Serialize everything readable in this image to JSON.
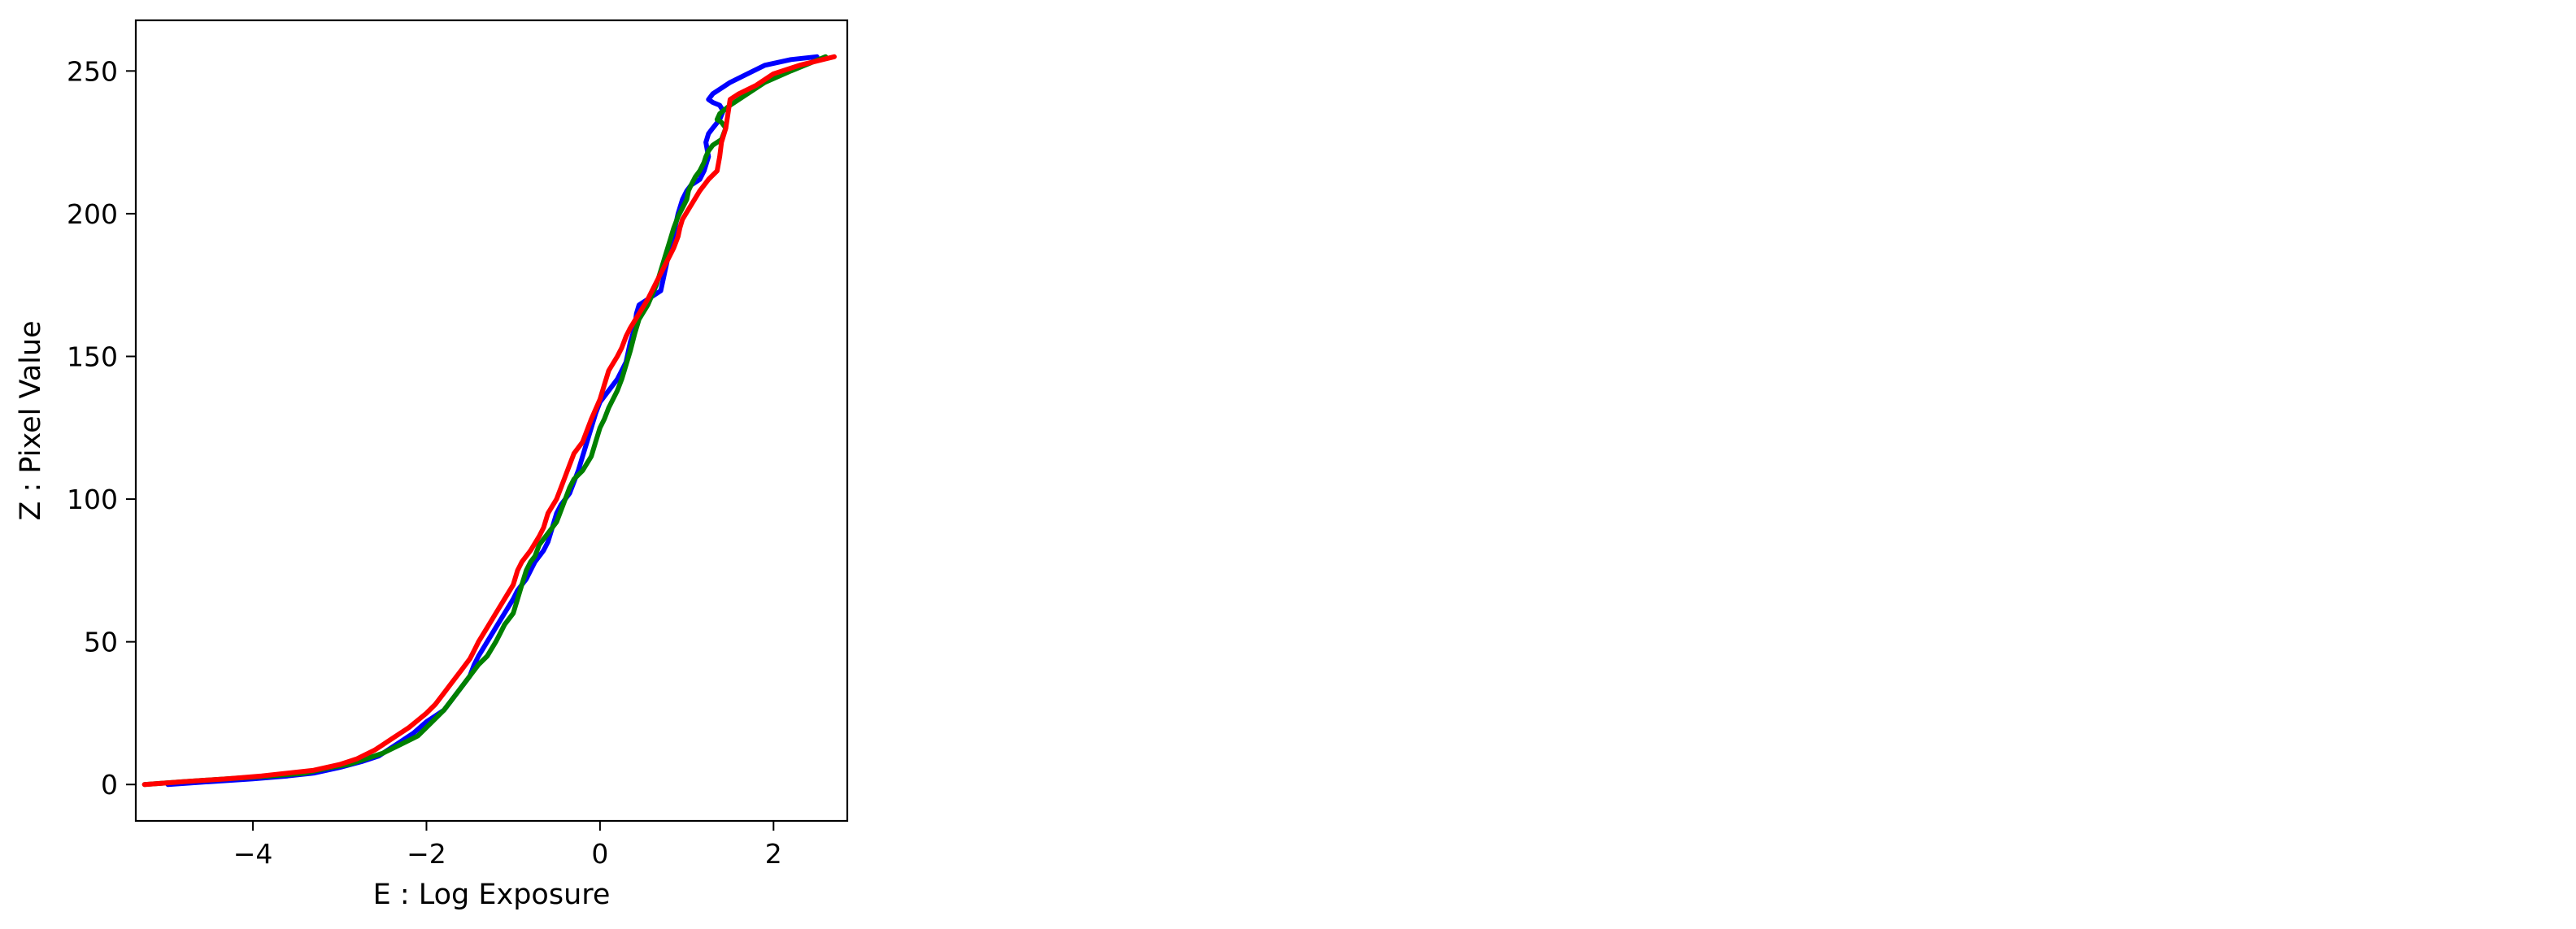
{
  "chart_data": [
    {
      "type": "line",
      "title": "",
      "xlabel": "E : Log Exposure",
      "ylabel": "Z : Pixel Value",
      "xlim": [
        -5.35,
        2.85
      ],
      "ylim": [
        -12.75,
        267.75
      ],
      "xticks": [
        -4,
        -2,
        0,
        2
      ],
      "xtick_labels": [
        "−4",
        "−2",
        "0",
        "2"
      ],
      "yticks": [
        0,
        50,
        100,
        150,
        200,
        250
      ],
      "ytick_labels": [
        "0",
        "50",
        "100",
        "150",
        "200",
        "250"
      ],
      "grid": false,
      "legend": "none",
      "series": [
        {
          "color": "#0000ff",
          "x": [
            -4.98,
            -4.5,
            -4.0,
            -3.6,
            -3.3,
            -3.0,
            -2.75,
            -2.55,
            -2.45,
            -2.3,
            -2.15,
            -2.0,
            -1.8,
            -1.7,
            -1.6,
            -1.5,
            -1.45,
            -1.4,
            -1.3,
            -1.2,
            -1.1,
            -1.0,
            -0.95,
            -0.85,
            -0.8,
            -0.75,
            -0.65,
            -0.6,
            -0.55,
            -0.5,
            -0.45,
            -0.35,
            -0.25,
            -0.2,
            -0.15,
            -0.1,
            -0.05,
            0.0,
            0.1,
            0.2,
            0.3,
            0.35,
            0.4,
            0.42,
            0.45,
            0.55,
            0.7,
            0.75,
            0.8,
            0.85,
            0.9,
            0.95,
            1.0,
            1.05,
            1.15,
            1.2,
            1.25,
            1.22,
            1.25,
            1.3,
            1.38,
            1.42,
            1.38,
            1.3,
            1.25,
            1.3,
            1.4,
            1.5,
            1.7,
            1.9,
            2.2,
            2.5
          ],
          "y": [
            0,
            1,
            2,
            3,
            4,
            6,
            8,
            10,
            12,
            15,
            18,
            22,
            26,
            30,
            34,
            38,
            42,
            45,
            50,
            55,
            60,
            65,
            68,
            72,
            75,
            78,
            82,
            85,
            90,
            95,
            98,
            102,
            110,
            115,
            120,
            125,
            130,
            134,
            138,
            142,
            148,
            155,
            160,
            165,
            168,
            170,
            173,
            180,
            187,
            193,
            200,
            205,
            208,
            210,
            212,
            215,
            220,
            225,
            228,
            230,
            233,
            236,
            238,
            239,
            240,
            242,
            244,
            246,
            249,
            252,
            254,
            255
          ]
        },
        {
          "color": "#008000",
          "x": [
            -5.25,
            -4.8,
            -4.3,
            -3.8,
            -3.4,
            -3.1,
            -2.9,
            -2.7,
            -2.5,
            -2.3,
            -2.1,
            -2.0,
            -1.9,
            -1.8,
            -1.7,
            -1.6,
            -1.5,
            -1.4,
            -1.3,
            -1.2,
            -1.15,
            -1.1,
            -1.0,
            -0.95,
            -0.9,
            -0.85,
            -0.8,
            -0.75,
            -0.7,
            -0.6,
            -0.5,
            -0.45,
            -0.4,
            -0.35,
            -0.3,
            -0.2,
            -0.1,
            -0.05,
            0.0,
            0.05,
            0.1,
            0.2,
            0.25,
            0.3,
            0.35,
            0.4,
            0.45,
            0.55,
            0.65,
            0.7,
            0.75,
            0.8,
            0.85,
            0.9,
            0.95,
            1.0,
            1.02,
            1.05,
            1.1,
            1.15,
            1.2,
            1.22,
            1.25,
            1.3,
            1.4,
            1.45,
            1.4,
            1.35,
            1.38,
            1.5,
            1.7,
            1.9,
            2.2,
            2.6
          ],
          "y": [
            0,
            1,
            2,
            3,
            4,
            6,
            7,
            9,
            11,
            14,
            17,
            20,
            23,
            26,
            30,
            34,
            38,
            42,
            45,
            50,
            53,
            56,
            60,
            65,
            70,
            75,
            78,
            80,
            84,
            88,
            92,
            96,
            100,
            104,
            107,
            110,
            115,
            120,
            125,
            128,
            132,
            138,
            142,
            147,
            152,
            158,
            163,
            168,
            175,
            180,
            185,
            190,
            195,
            199,
            202,
            205,
            208,
            210,
            213,
            215,
            218,
            220,
            222,
            224,
            226,
            230,
            232,
            233,
            235,
            238,
            242,
            246,
            250,
            255
          ]
        },
        {
          "color": "#ff0000",
          "x": [
            -5.25,
            -4.8,
            -4.3,
            -3.9,
            -3.6,
            -3.3,
            -3.0,
            -2.8,
            -2.6,
            -2.5,
            -2.4,
            -2.2,
            -2.0,
            -1.9,
            -1.8,
            -1.7,
            -1.6,
            -1.5,
            -1.45,
            -1.4,
            -1.3,
            -1.2,
            -1.1,
            -1.0,
            -0.95,
            -0.9,
            -0.8,
            -0.7,
            -0.65,
            -0.6,
            -0.5,
            -0.45,
            -0.4,
            -0.35,
            -0.3,
            -0.2,
            -0.1,
            0.0,
            0.05,
            0.1,
            0.2,
            0.25,
            0.3,
            0.35,
            0.45,
            0.55,
            0.65,
            0.75,
            0.85,
            0.9,
            0.92,
            0.95,
            1.05,
            1.15,
            1.25,
            1.35,
            1.38,
            1.4,
            1.45,
            1.48,
            1.5,
            1.6,
            1.8,
            2.0,
            2.3,
            2.7
          ],
          "y": [
            0,
            1,
            2,
            3,
            4,
            5,
            7,
            9,
            12,
            14,
            16,
            20,
            25,
            28,
            32,
            36,
            40,
            44,
            47,
            50,
            55,
            60,
            65,
            70,
            75,
            78,
            82,
            87,
            90,
            95,
            100,
            104,
            108,
            112,
            116,
            120,
            128,
            135,
            140,
            145,
            150,
            153,
            157,
            160,
            165,
            170,
            176,
            182,
            188,
            192,
            195,
            198,
            203,
            208,
            212,
            215,
            220,
            225,
            230,
            236,
            240,
            242,
            245,
            249,
            252,
            255
          ]
        }
      ]
    }
  ]
}
